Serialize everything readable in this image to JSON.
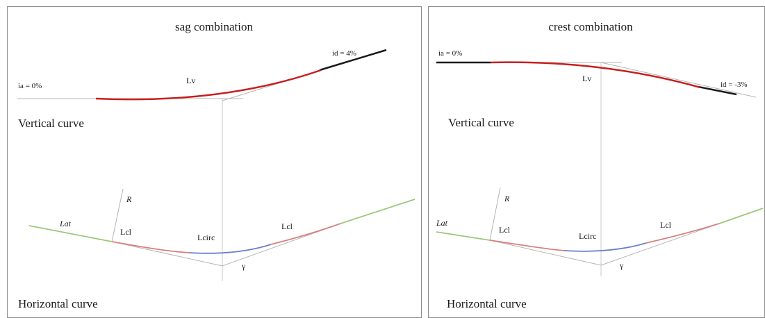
{
  "left_panel": {
    "title": "sag combination",
    "vertical_label": "Vertical curve",
    "horizontal_label": "Horizontal  curve",
    "ia": "ia = 0%",
    "id": "id = 4%",
    "lv": "Lv",
    "r": "R",
    "lat": "Lat",
    "lcl_1": "Lcl",
    "lcirc": "Lcirc",
    "lcl_2": "Lcl",
    "gamma": "γ"
  },
  "right_panel": {
    "title": "crest combination",
    "vertical_label": "Vertical curve",
    "horizontal_label": "Horizontal  curve",
    "ia": "ia = 0%",
    "id": "id = -3%",
    "lv": "Lv",
    "r": "R",
    "lat": "Lat",
    "lcl_1": "Lcl",
    "lcirc": "Lcirc",
    "lcl_2": "Lcl",
    "gamma": "γ"
  },
  "colors": {
    "vertical_curve": "#c81e1e",
    "tangent_grade": "#1a1a1a",
    "construction": "#b4b4b4",
    "straight": "#9cc87a",
    "clothoid": "#d98080",
    "circular_arc": "#6a7fc8"
  }
}
